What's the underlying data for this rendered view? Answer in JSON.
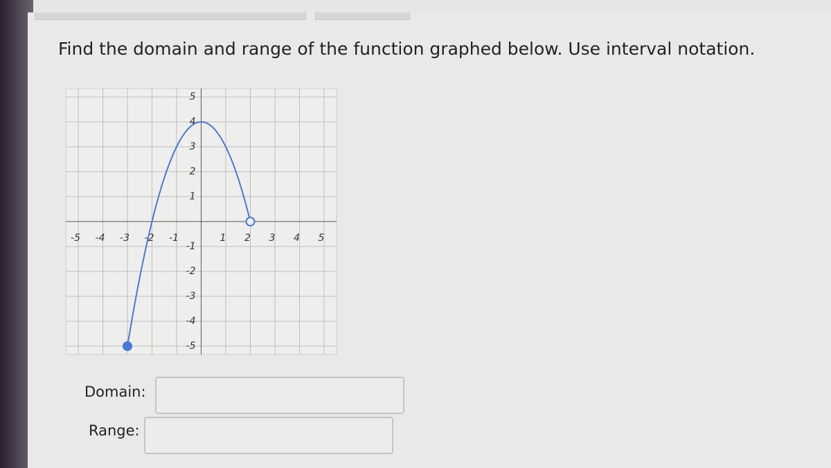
{
  "question": "Find the domain and range of the function graphed below. Use interval notation.",
  "graph": {
    "xlim": [
      -5,
      5
    ],
    "ylim": [
      -5,
      5
    ],
    "xticks": [
      -5,
      -4,
      -3,
      -2,
      -1,
      1,
      2,
      3,
      4,
      5
    ],
    "yticks": [
      -5,
      -4,
      -3,
      -2,
      -1,
      1,
      2,
      3,
      4,
      5
    ],
    "grid": true,
    "color": "#4a78d8",
    "start": [
      -3,
      -5
    ],
    "start_closed": true,
    "vertex": [
      0,
      4
    ],
    "end": [
      2,
      0
    ],
    "end_closed": false
  },
  "fields": [
    {
      "label": "Domain:"
    },
    {
      "label": "Range:"
    }
  ]
}
